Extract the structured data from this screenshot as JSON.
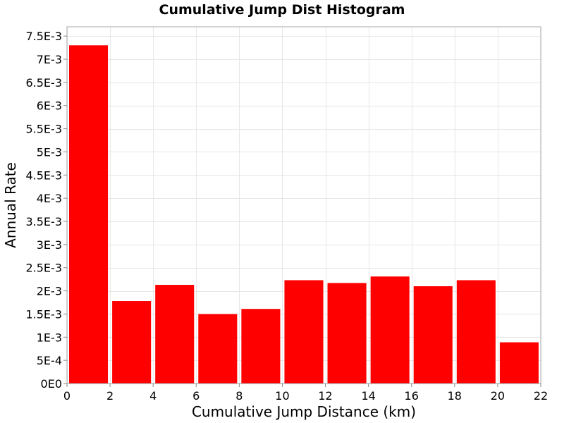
{
  "chart_data": {
    "type": "bar",
    "title": "Cumulative Jump Dist Histogram",
    "xlabel": "Cumulative Jump Distance (km)",
    "ylabel": "Annual Rate",
    "xlim": [
      0,
      22
    ],
    "ylim": [
      0,
      0.0077
    ],
    "grid": true,
    "legend": "none",
    "bar_color": "#ff0000",
    "bins": [
      {
        "x_start": 0,
        "x_end": 2,
        "value": 0.0073
      },
      {
        "x_start": 2,
        "x_end": 4,
        "value": 0.00178
      },
      {
        "x_start": 4,
        "x_end": 6,
        "value": 0.00213
      },
      {
        "x_start": 6,
        "x_end": 8,
        "value": 0.0015
      },
      {
        "x_start": 8,
        "x_end": 10,
        "value": 0.00161
      },
      {
        "x_start": 10,
        "x_end": 12,
        "value": 0.00223
      },
      {
        "x_start": 12,
        "x_end": 14,
        "value": 0.00217
      },
      {
        "x_start": 14,
        "x_end": 16,
        "value": 0.00231
      },
      {
        "x_start": 16,
        "x_end": 18,
        "value": 0.0021
      },
      {
        "x_start": 18,
        "x_end": 20,
        "value": 0.00223
      },
      {
        "x_start": 20,
        "x_end": 22,
        "value": 0.00089
      }
    ],
    "x_ticks": [
      {
        "value": 0,
        "label": "0"
      },
      {
        "value": 2,
        "label": "2"
      },
      {
        "value": 4,
        "label": "4"
      },
      {
        "value": 6,
        "label": "6"
      },
      {
        "value": 8,
        "label": "8"
      },
      {
        "value": 10,
        "label": "10"
      },
      {
        "value": 12,
        "label": "12"
      },
      {
        "value": 14,
        "label": "14"
      },
      {
        "value": 16,
        "label": "16"
      },
      {
        "value": 18,
        "label": "18"
      },
      {
        "value": 20,
        "label": "20"
      },
      {
        "value": 22,
        "label": "22"
      }
    ],
    "y_ticks": [
      {
        "value": 0,
        "label": "0E0"
      },
      {
        "value": 0.0005,
        "label": "5E-4"
      },
      {
        "value": 0.001,
        "label": "1E-3"
      },
      {
        "value": 0.0015,
        "label": "1.5E-3"
      },
      {
        "value": 0.002,
        "label": "2E-3"
      },
      {
        "value": 0.0025,
        "label": "2.5E-3"
      },
      {
        "value": 0.003,
        "label": "3E-3"
      },
      {
        "value": 0.0035,
        "label": "3.5E-3"
      },
      {
        "value": 0.004,
        "label": "4E-3"
      },
      {
        "value": 0.0045,
        "label": "4.5E-3"
      },
      {
        "value": 0.005,
        "label": "5E-3"
      },
      {
        "value": 0.0055,
        "label": "5.5E-3"
      },
      {
        "value": 0.006,
        "label": "6E-3"
      },
      {
        "value": 0.0065,
        "label": "6.5E-3"
      },
      {
        "value": 0.007,
        "label": "7E-3"
      },
      {
        "value": 0.0075,
        "label": "7.5E-3"
      }
    ]
  }
}
